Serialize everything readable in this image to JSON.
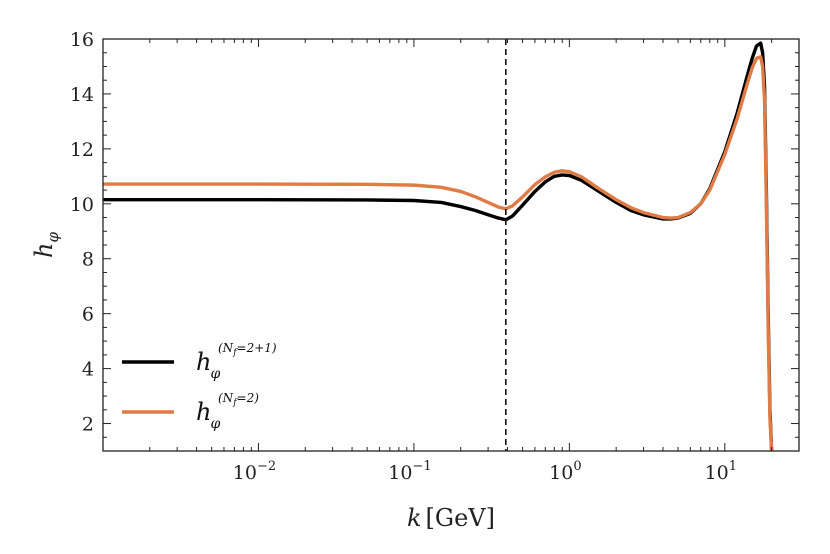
{
  "chart_data": {
    "type": "line",
    "xscale": "log",
    "xlim": [
      0.001,
      30
    ],
    "ylim": [
      1,
      16
    ],
    "xlabel": "k [GeV]",
    "ylabel": "h_φ",
    "x_ticks": [
      {
        "value": 0.01,
        "base": "10",
        "exp": "−2"
      },
      {
        "value": 0.1,
        "base": "10",
        "exp": "−1"
      },
      {
        "value": 1,
        "base": "10",
        "exp": "0"
      },
      {
        "value": 10,
        "base": "10",
        "exp": "1"
      }
    ],
    "y_ticks": [
      2,
      4,
      6,
      8,
      10,
      12,
      14,
      16
    ],
    "vline_x": 0.39,
    "grid": false,
    "legend_position": "lower-left",
    "series": [
      {
        "name": "h_φ^(N_f=2+1)",
        "legend_main": "h",
        "legend_sub": "φ",
        "legend_sup": "(N",
        "legend_sup_sub": "f",
        "legend_sup_tail": "=2+1)",
        "color": "#000000",
        "x": [
          0.001,
          0.01,
          0.05,
          0.1,
          0.15,
          0.2,
          0.25,
          0.3,
          0.35,
          0.39,
          0.43,
          0.5,
          0.6,
          0.7,
          0.8,
          0.9,
          1.0,
          1.2,
          1.5,
          2.0,
          2.5,
          3.0,
          4.0,
          4.5,
          5.0,
          6.0,
          7.0,
          8.0,
          10.0,
          12.0,
          14.0,
          15.0,
          16.0,
          17.0,
          17.5,
          18.0,
          18.5,
          19.0,
          19.5,
          20.0
        ],
        "y": [
          10.15,
          10.15,
          10.14,
          10.12,
          10.05,
          9.9,
          9.75,
          9.6,
          9.48,
          9.42,
          9.55,
          9.95,
          10.45,
          10.8,
          11.0,
          11.05,
          11.03,
          10.85,
          10.5,
          10.05,
          9.75,
          9.6,
          9.45,
          9.45,
          9.48,
          9.65,
          10.0,
          10.55,
          11.9,
          13.3,
          14.7,
          15.3,
          15.75,
          15.85,
          15.5,
          14.3,
          10.5,
          6.0,
          2.5,
          1.0
        ]
      },
      {
        "name": "h_φ^(N_f=2)",
        "legend_main": "h",
        "legend_sub": "φ",
        "legend_sup": "(N",
        "legend_sup_sub": "f",
        "legend_sup_tail": "=2)",
        "color": "#e07b45",
        "x": [
          0.001,
          0.01,
          0.05,
          0.1,
          0.15,
          0.2,
          0.25,
          0.3,
          0.35,
          0.39,
          0.43,
          0.5,
          0.6,
          0.7,
          0.8,
          0.9,
          1.0,
          1.2,
          1.5,
          2.0,
          2.5,
          3.0,
          4.0,
          4.5,
          5.0,
          6.0,
          7.0,
          8.0,
          10.0,
          12.0,
          14.0,
          15.0,
          16.0,
          17.0,
          17.5,
          18.0,
          18.5,
          19.0,
          19.5,
          20.0
        ],
        "y": [
          10.72,
          10.72,
          10.71,
          10.68,
          10.6,
          10.45,
          10.25,
          10.05,
          9.88,
          9.82,
          9.92,
          10.25,
          10.7,
          10.98,
          11.15,
          11.2,
          11.17,
          10.98,
          10.6,
          10.15,
          9.85,
          9.68,
          9.5,
          9.48,
          9.5,
          9.68,
          10.0,
          10.5,
          11.8,
          13.1,
          14.4,
          14.95,
          15.3,
          15.35,
          15.0,
          13.8,
          10.0,
          5.5,
          2.2,
          1.0
        ]
      }
    ]
  }
}
